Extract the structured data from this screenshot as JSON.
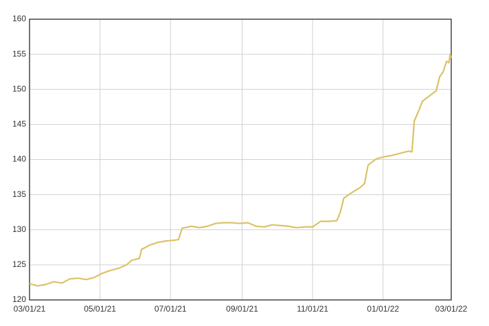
{
  "chart_data": {
    "type": "line",
    "x": [
      "2021-03-01",
      "2021-03-08",
      "2021-03-15",
      "2021-03-22",
      "2021-03-29",
      "2021-04-05",
      "2021-04-12",
      "2021-04-19",
      "2021-04-26",
      "2021-05-03",
      "2021-05-10",
      "2021-05-17",
      "2021-05-24",
      "2021-05-28",
      "2021-06-01",
      "2021-06-04",
      "2021-06-06",
      "2021-06-13",
      "2021-06-20",
      "2021-06-27",
      "2021-07-04",
      "2021-07-08",
      "2021-07-11",
      "2021-07-19",
      "2021-07-26",
      "2021-08-02",
      "2021-08-09",
      "2021-08-16",
      "2021-08-23",
      "2021-08-30",
      "2021-09-06",
      "2021-09-13",
      "2021-09-20",
      "2021-09-27",
      "2021-10-04",
      "2021-10-11",
      "2021-10-18",
      "2021-10-25",
      "2021-11-01",
      "2021-11-08",
      "2021-11-15",
      "2021-11-22",
      "2021-11-25",
      "2021-11-28",
      "2021-12-05",
      "2021-12-12",
      "2021-12-16",
      "2021-12-19",
      "2021-12-26",
      "2022-01-02",
      "2022-01-09",
      "2022-01-16",
      "2022-01-23",
      "2022-01-26",
      "2022-01-28",
      "2022-02-01",
      "2022-02-04",
      "2022-02-08",
      "2022-02-12",
      "2022-02-16",
      "2022-02-19",
      "2022-02-22",
      "2022-02-25",
      "2022-02-27",
      "2022-02-28",
      "2022-03-01"
    ],
    "series": [
      {
        "color": "#dcc266",
        "values": [
          122.3,
          122.0,
          122.2,
          122.6,
          122.4,
          123.0,
          123.1,
          122.9,
          123.2,
          123.8,
          124.2,
          124.5,
          125.0,
          125.6,
          125.8,
          125.9,
          127.2,
          127.8,
          128.2,
          128.4,
          128.5,
          128.6,
          130.2,
          130.5,
          130.3,
          130.5,
          130.9,
          131.0,
          131.0,
          130.9,
          131.0,
          130.5,
          130.4,
          130.7,
          130.6,
          130.5,
          130.3,
          130.4,
          130.4,
          131.2,
          131.2,
          131.3,
          132.5,
          134.5,
          135.3,
          136.0,
          136.6,
          139.2,
          140.1,
          140.4,
          140.6,
          140.9,
          141.2,
          141.1,
          145.5,
          147.0,
          148.3,
          148.8,
          149.3,
          149.8,
          151.8,
          152.5,
          154.0,
          153.8,
          155.0,
          154.5
        ]
      }
    ],
    "xlim": [
      "2021-03-01",
      "2022-03-01"
    ],
    "xticks": [
      {
        "value": "2021-03-01",
        "label": "03/01/21"
      },
      {
        "value": "2021-05-01",
        "label": "05/01/21"
      },
      {
        "value": "2021-07-01",
        "label": "07/01/21"
      },
      {
        "value": "2021-09-01",
        "label": "09/01/21"
      },
      {
        "value": "2021-11-01",
        "label": "11/01/21"
      },
      {
        "value": "2022-01-01",
        "label": "01/01/22"
      },
      {
        "value": "2022-03-01",
        "label": "03/01/22"
      }
    ],
    "ylim": [
      120,
      160
    ],
    "yticks": [
      120,
      125,
      130,
      135,
      140,
      145,
      150,
      155,
      160
    ],
    "grid": true
  }
}
